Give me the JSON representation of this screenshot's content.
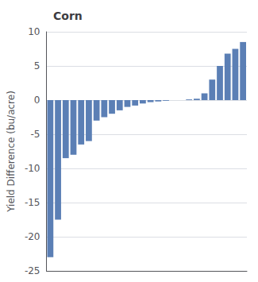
{
  "chart_data": {
    "type": "bar",
    "title": "Corn",
    "ylabel": "Yield Difference (bu/acre)",
    "categories": [
      null,
      null,
      null,
      null,
      null,
      null,
      null,
      null,
      null,
      null,
      null,
      null,
      null,
      null,
      null,
      null,
      null,
      null,
      null,
      null,
      null,
      null,
      null,
      null,
      null,
      null
    ],
    "values": [
      -23,
      -17.5,
      -8.5,
      -8,
      -6.5,
      -6,
      -3,
      -2.5,
      -2,
      -1.5,
      -1,
      -0.8,
      -0.5,
      -0.3,
      -0.2,
      -0.1,
      0,
      0,
      0.1,
      0.2,
      1,
      3,
      5,
      6.8,
      7.5,
      8.5
    ],
    "color": "#5b7fb5",
    "ylim": [
      -25,
      10
    ],
    "yticks": [
      -25,
      -20,
      -15,
      -10,
      -5,
      0,
      5,
      10
    ],
    "grid": true,
    "tick_labels": "y"
  }
}
